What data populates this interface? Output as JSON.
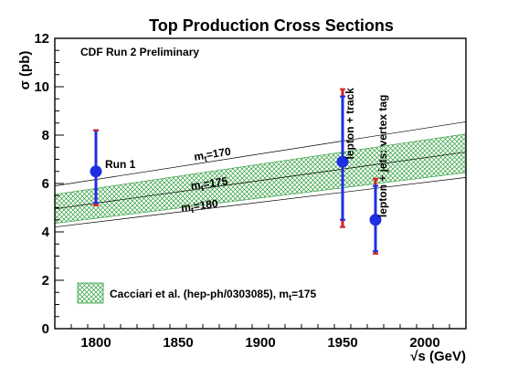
{
  "chart_data": {
    "type": "scatter",
    "title": "Top Production Cross Sections",
    "subtitle": "CDF Run 2 Preliminary",
    "xlabel": "√s (GeV)",
    "ylabel": "σ (pb)",
    "xlim": [
      1775,
      2025
    ],
    "ylim": [
      0,
      12
    ],
    "x_ticks": [
      1800,
      1850,
      1900,
      1950,
      2000
    ],
    "y_ticks": [
      0,
      2,
      4,
      6,
      8,
      10,
      12
    ],
    "grid": false,
    "legend_position": "bottom-left",
    "band": {
      "label": "Cacciari et al. (hep-ph/0303085), m",
      "label_sub": "t",
      "label_tail": "=175",
      "color": "#2e9e3a",
      "x": [
        1775,
        2025
      ],
      "upper": [
        5.55,
        8.05
      ],
      "lower": [
        4.35,
        6.45
      ]
    },
    "theory_lines": [
      {
        "label": "m",
        "sub": "t",
        "tail": "=170",
        "x": [
          1775,
          2025
        ],
        "y": [
          5.9,
          8.55
        ],
        "label_at": [
          1860,
          6.95
        ]
      },
      {
        "label": "m",
        "sub": "t",
        "tail": "=175",
        "x": [
          1775,
          2025
        ],
        "y": [
          4.95,
          7.3
        ],
        "label_at": [
          1858,
          5.75
        ]
      },
      {
        "label": "m",
        "sub": "t",
        "tail": "=180",
        "x": [
          1775,
          2025
        ],
        "y": [
          4.2,
          6.25
        ],
        "label_at": [
          1852,
          4.85
        ]
      }
    ],
    "points": [
      {
        "label": "Run 1",
        "x": 1800,
        "y": 6.5,
        "err_stat": [
          5.2,
          8.2
        ],
        "err_tot": [
          5.1,
          8.2
        ]
      },
      {
        "label": "lepton + track",
        "x": 1950,
        "y": 6.9,
        "err_stat": [
          4.5,
          9.6
        ],
        "err_tot": [
          4.2,
          9.9
        ]
      },
      {
        "label": "lepton + jets: vertex tag",
        "x": 1970,
        "y": 4.5,
        "err_stat": [
          3.2,
          5.9
        ],
        "err_tot": [
          3.1,
          6.2
        ]
      }
    ],
    "colors": {
      "marker": "#1f2fe0",
      "syst_cap": "#d42020",
      "line": "#000000"
    }
  }
}
